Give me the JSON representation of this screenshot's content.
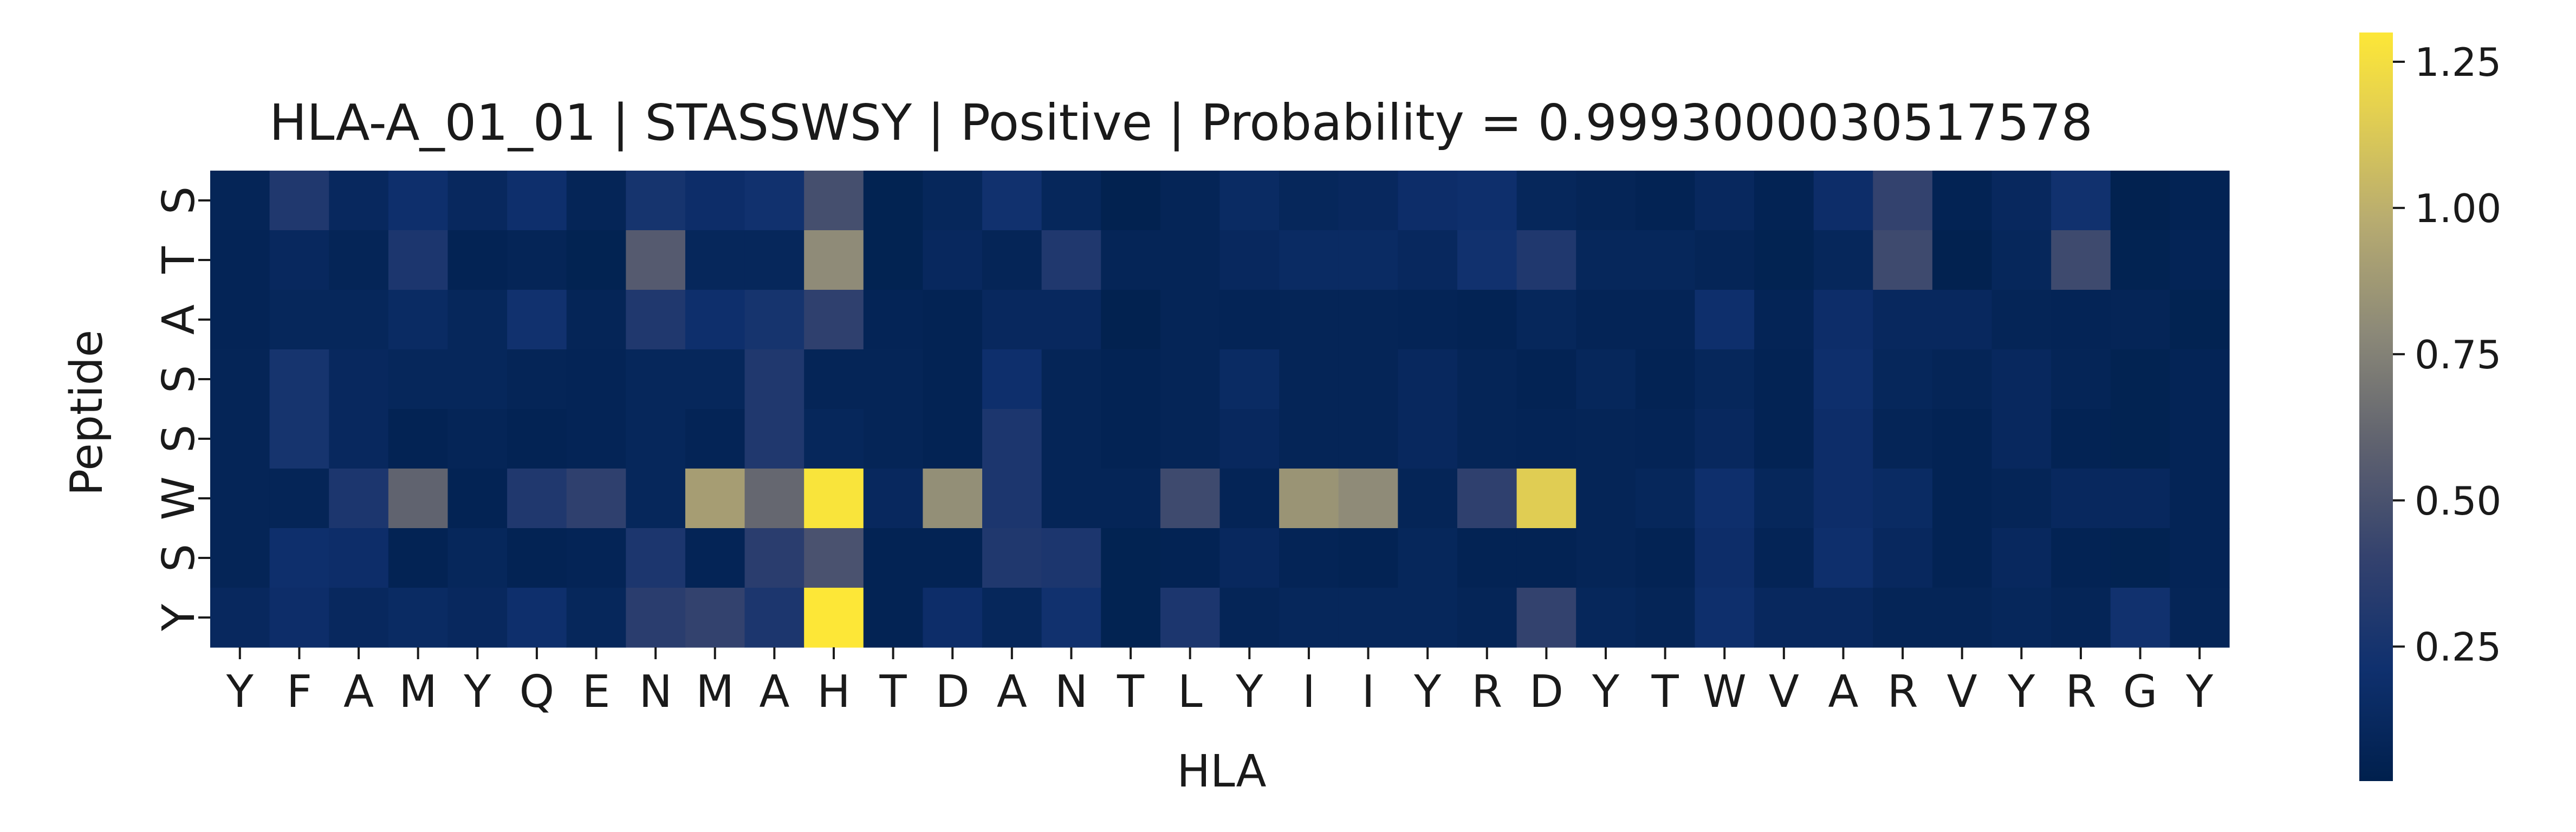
{
  "chart_data": {
    "type": "heatmap",
    "title": "HLA-A_01_01 | STASSWSY | Positive | Probability = 0.9993000030517578",
    "xlabel": "HLA",
    "ylabel": "Peptide",
    "x_labels": [
      "Y",
      "F",
      "A",
      "M",
      "Y",
      "Q",
      "E",
      "N",
      "M",
      "A",
      "H",
      "T",
      "D",
      "A",
      "N",
      "T",
      "L",
      "Y",
      "I",
      "I",
      "Y",
      "R",
      "D",
      "Y",
      "T",
      "W",
      "V",
      "A",
      "R",
      "V",
      "Y",
      "R",
      "G",
      "Y"
    ],
    "y_labels": [
      "S",
      "T",
      "A",
      "S",
      "S",
      "W",
      "S",
      "Y"
    ],
    "colormap": "cividis",
    "colorbar_range": [
      0.02,
      1.3
    ],
    "colorbar_ticks": [
      "0.25",
      "0.50",
      "0.75",
      "1.00",
      "1.25"
    ],
    "colorbar_tick_values": [
      0.25,
      0.5,
      0.75,
      1.0,
      1.25
    ],
    "values": [
      [
        0.08,
        0.3,
        0.12,
        0.2,
        0.12,
        0.2,
        0.08,
        0.25,
        0.18,
        0.22,
        0.48,
        0.05,
        0.1,
        0.22,
        0.1,
        0.04,
        0.08,
        0.15,
        0.1,
        0.12,
        0.18,
        0.2,
        0.1,
        0.08,
        0.06,
        0.12,
        0.06,
        0.18,
        0.4,
        0.06,
        0.12,
        0.22,
        0.04,
        0.06
      ],
      [
        0.07,
        0.12,
        0.08,
        0.28,
        0.06,
        0.08,
        0.05,
        0.55,
        0.1,
        0.1,
        0.8,
        0.05,
        0.12,
        0.08,
        0.3,
        0.08,
        0.08,
        0.12,
        0.15,
        0.15,
        0.12,
        0.22,
        0.3,
        0.1,
        0.1,
        0.08,
        0.05,
        0.1,
        0.45,
        0.04,
        0.1,
        0.45,
        0.05,
        0.07
      ],
      [
        0.07,
        0.1,
        0.1,
        0.15,
        0.1,
        0.22,
        0.08,
        0.3,
        0.2,
        0.25,
        0.38,
        0.07,
        0.06,
        0.12,
        0.12,
        0.04,
        0.08,
        0.07,
        0.08,
        0.08,
        0.07,
        0.06,
        0.1,
        0.07,
        0.07,
        0.2,
        0.07,
        0.18,
        0.12,
        0.12,
        0.08,
        0.07,
        0.08,
        0.05
      ],
      [
        0.08,
        0.25,
        0.12,
        0.1,
        0.1,
        0.08,
        0.07,
        0.1,
        0.1,
        0.3,
        0.08,
        0.08,
        0.06,
        0.2,
        0.08,
        0.06,
        0.08,
        0.15,
        0.08,
        0.08,
        0.12,
        0.08,
        0.06,
        0.1,
        0.06,
        0.1,
        0.06,
        0.2,
        0.1,
        0.08,
        0.12,
        0.08,
        0.05,
        0.07
      ],
      [
        0.08,
        0.25,
        0.12,
        0.06,
        0.08,
        0.06,
        0.07,
        0.1,
        0.07,
        0.3,
        0.1,
        0.08,
        0.06,
        0.28,
        0.08,
        0.06,
        0.08,
        0.12,
        0.08,
        0.08,
        0.12,
        0.08,
        0.07,
        0.08,
        0.07,
        0.12,
        0.06,
        0.18,
        0.08,
        0.06,
        0.12,
        0.06,
        0.05,
        0.07
      ],
      [
        0.08,
        0.08,
        0.28,
        0.6,
        0.06,
        0.3,
        0.38,
        0.1,
        0.9,
        0.62,
        1.28,
        0.12,
        0.82,
        0.28,
        0.08,
        0.08,
        0.45,
        0.07,
        0.85,
        0.8,
        0.08,
        0.38,
        1.15,
        0.08,
        0.1,
        0.2,
        0.1,
        0.18,
        0.15,
        0.06,
        0.08,
        0.12,
        0.12,
        0.07
      ],
      [
        0.08,
        0.2,
        0.18,
        0.06,
        0.1,
        0.06,
        0.07,
        0.28,
        0.07,
        0.35,
        0.5,
        0.06,
        0.06,
        0.3,
        0.28,
        0.05,
        0.06,
        0.12,
        0.07,
        0.06,
        0.1,
        0.06,
        0.06,
        0.08,
        0.06,
        0.18,
        0.07,
        0.2,
        0.12,
        0.06,
        0.12,
        0.06,
        0.05,
        0.07
      ],
      [
        0.12,
        0.18,
        0.12,
        0.15,
        0.12,
        0.2,
        0.1,
        0.35,
        0.4,
        0.28,
        1.3,
        0.06,
        0.18,
        0.1,
        0.22,
        0.05,
        0.28,
        0.08,
        0.1,
        0.1,
        0.1,
        0.08,
        0.4,
        0.1,
        0.08,
        0.2,
        0.12,
        0.12,
        0.08,
        0.08,
        0.1,
        0.08,
        0.22,
        0.08
      ]
    ]
  }
}
